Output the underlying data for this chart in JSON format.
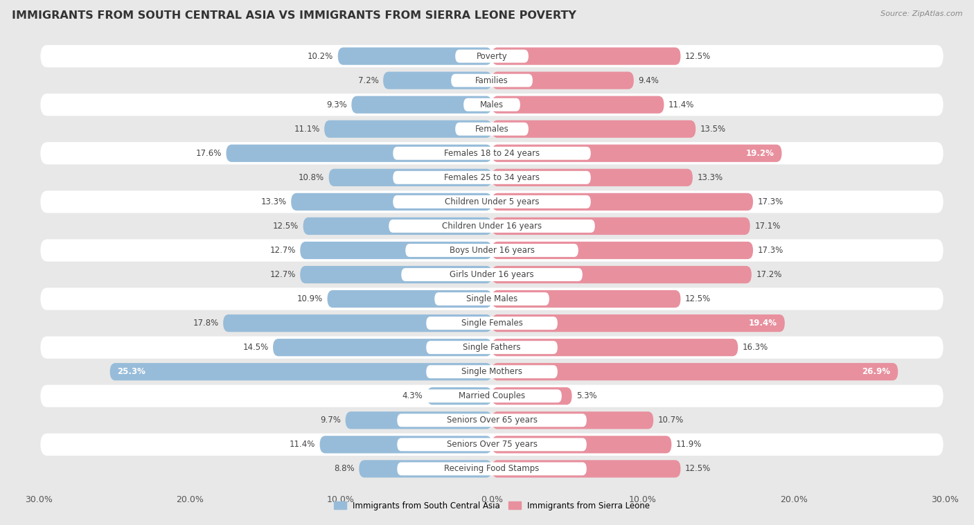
{
  "title": "IMMIGRANTS FROM SOUTH CENTRAL ASIA VS IMMIGRANTS FROM SIERRA LEONE POVERTY",
  "source": "Source: ZipAtlas.com",
  "categories": [
    "Poverty",
    "Families",
    "Males",
    "Females",
    "Females 18 to 24 years",
    "Females 25 to 34 years",
    "Children Under 5 years",
    "Children Under 16 years",
    "Boys Under 16 years",
    "Girls Under 16 years",
    "Single Males",
    "Single Females",
    "Single Fathers",
    "Single Mothers",
    "Married Couples",
    "Seniors Over 65 years",
    "Seniors Over 75 years",
    "Receiving Food Stamps"
  ],
  "left_values": [
    10.2,
    7.2,
    9.3,
    11.1,
    17.6,
    10.8,
    13.3,
    12.5,
    12.7,
    12.7,
    10.9,
    17.8,
    14.5,
    25.3,
    4.3,
    9.7,
    11.4,
    8.8
  ],
  "right_values": [
    12.5,
    9.4,
    11.4,
    13.5,
    19.2,
    13.3,
    17.3,
    17.1,
    17.3,
    17.2,
    12.5,
    19.4,
    16.3,
    26.9,
    5.3,
    10.7,
    11.9,
    12.5
  ],
  "left_color": "#97bcd9",
  "right_color": "#e8909e",
  "left_label": "Immigrants from South Central Asia",
  "right_label": "Immigrants from Sierra Leone",
  "xlim": 30.0,
  "background_color": "#e8e8e8",
  "row_color_even": "#ffffff",
  "row_color_odd": "#e8e8e8",
  "title_fontsize": 11.5,
  "label_fontsize": 8.5,
  "value_fontsize": 8.5,
  "axis_fontsize": 9,
  "inside_threshold": 18.0
}
